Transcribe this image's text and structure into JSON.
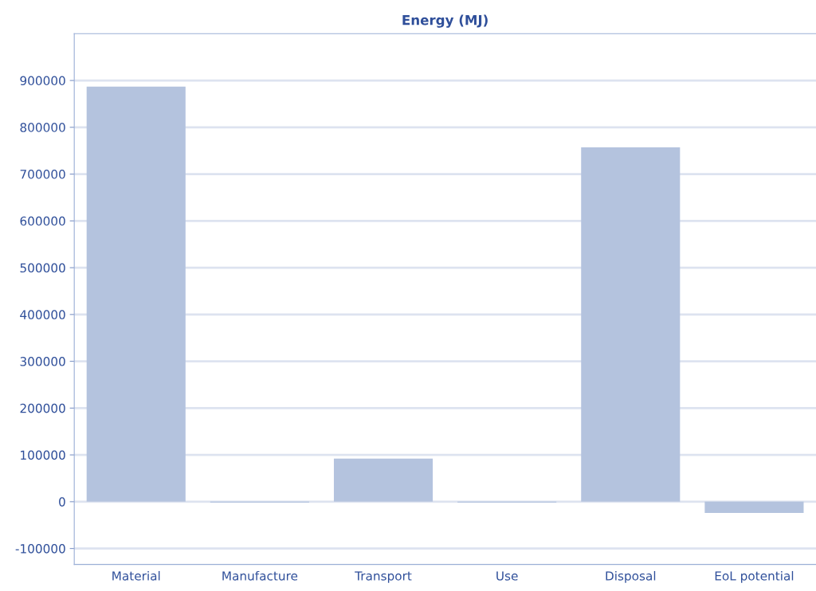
{
  "chart_data": {
    "type": "bar",
    "title": "Energy (MJ)",
    "categories": [
      "Material",
      "Manufacture",
      "Transport",
      "Use",
      "Disposal",
      "EoL potential"
    ],
    "values": [
      887000,
      -2000,
      92000,
      -2000,
      757000,
      -24000
    ],
    "color": "#b4c3de",
    "ylim": [
      -134000,
      1000000
    ],
    "yticks": [
      -100000,
      0,
      100000,
      200000,
      300000,
      400000,
      500000,
      600000,
      700000,
      800000,
      900000
    ],
    "grid": "y",
    "legend": false
  }
}
